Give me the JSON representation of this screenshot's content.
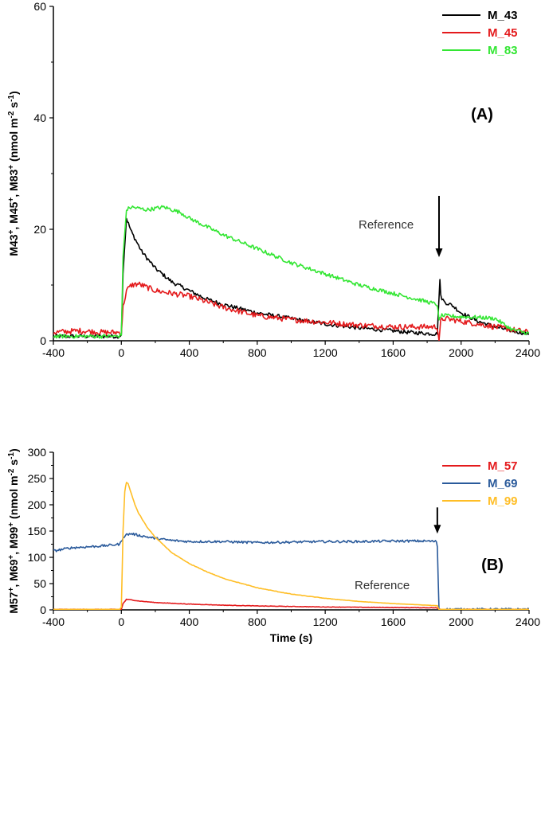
{
  "chart_data": [
    {
      "type": "line",
      "panel_label": "(A)",
      "ylabel_parts": [
        {
          "t": "M43"
        },
        {
          "t": "+",
          "sup": true
        },
        {
          "t": ", M45"
        },
        {
          "t": "+",
          "sup": true
        },
        {
          "t": ", M83"
        },
        {
          "t": "+",
          "sup": true
        },
        {
          "t": " (nmol m"
        },
        {
          "t": "-2",
          "sup": true
        },
        {
          "t": " s"
        },
        {
          "t": "-1",
          "sup": true
        },
        {
          "t": ")"
        }
      ],
      "xlabel": "",
      "xlim": [
        -400,
        2400
      ],
      "ylim": [
        0,
        60
      ],
      "xticks": [
        "-400",
        "0",
        "400",
        "800",
        "1200",
        "1600",
        "2000",
        "2400"
      ],
      "yticks": [
        "0",
        "20",
        "40",
        "60"
      ],
      "legend_position": "top-right",
      "annotation": {
        "text": "Reference",
        "x": 1870,
        "arrow_from": 26,
        "arrow_to": 15
      },
      "series": [
        {
          "name": "M_43",
          "color": "#000000",
          "x": [
            -400,
            -200,
            -20,
            0,
            10,
            30,
            60,
            120,
            200,
            300,
            400,
            500,
            600,
            800,
            1000,
            1200,
            1400,
            1600,
            1700,
            1860,
            1870,
            1875,
            1880,
            1900,
            1950,
            2000,
            2100,
            2200,
            2300,
            2400
          ],
          "y": [
            0.8,
            0.8,
            0.8,
            1.0,
            12,
            22,
            19.5,
            16,
            13,
            10.5,
            9,
            7.5,
            6.5,
            5,
            4,
            3,
            2.3,
            1.8,
            1.5,
            1.2,
            8,
            11,
            8,
            7,
            6.3,
            5,
            3.5,
            2.5,
            1.8,
            1.2
          ]
        },
        {
          "name": "M_45",
          "color": "#e41a1c",
          "x": [
            -400,
            -250,
            -100,
            -20,
            0,
            10,
            30,
            60,
            100,
            200,
            300,
            400,
            500,
            600,
            800,
            1000,
            1200,
            1400,
            1600,
            1700,
            1860,
            1870,
            1875,
            1880,
            1900,
            2000,
            2100,
            2200,
            2300,
            2400
          ],
          "y": [
            1.5,
            1.8,
            1.5,
            1.5,
            1.5,
            6,
            9,
            10,
            10.2,
            9,
            8.5,
            8,
            7,
            6,
            4.5,
            3.8,
            3.3,
            2.8,
            2.5,
            2.5,
            2.5,
            0,
            1.5,
            3.5,
            4,
            3.5,
            3,
            2.5,
            2,
            1.5
          ]
        },
        {
          "name": "M_83",
          "color": "#33e633",
          "x": [
            -400,
            -200,
            -20,
            0,
            10,
            30,
            60,
            150,
            250,
            350,
            400,
            500,
            600,
            800,
            1000,
            1200,
            1400,
            1600,
            1800,
            1860,
            1870,
            1880,
            1900,
            2000,
            2100,
            2200,
            2300,
            2400
          ],
          "y": [
            0.8,
            0.8,
            0.8,
            1.0,
            15,
            23.5,
            24,
            23.5,
            24,
            23,
            22,
            20.5,
            19,
            16.5,
            14,
            12,
            10,
            8.5,
            7,
            6.5,
            3.5,
            4.5,
            4.5,
            4.3,
            4.2,
            4,
            2,
            1.3
          ]
        }
      ]
    },
    {
      "type": "line",
      "panel_label": "(B)",
      "ylabel_parts": [
        {
          "t": "M57"
        },
        {
          "t": "+",
          "sup": true
        },
        {
          "t": ", M69"
        },
        {
          "t": "+",
          "sup": true
        },
        {
          "t": ", M99"
        },
        {
          "t": "+",
          "sup": true
        },
        {
          "t": " (nmol m"
        },
        {
          "t": "-2",
          "sup": true
        },
        {
          "t": " s"
        },
        {
          "t": "-1",
          "sup": true
        },
        {
          "t": ")"
        }
      ],
      "xlabel": "Time (s)",
      "xlim": [
        -400,
        2400
      ],
      "ylim": [
        0,
        300
      ],
      "xticks": [
        "-400",
        "0",
        "400",
        "800",
        "1200",
        "1600",
        "2000",
        "2400"
      ],
      "yticks": [
        "0",
        "50",
        "100",
        "150",
        "200",
        "250",
        "300"
      ],
      "legend_position": "top-right",
      "annotation": {
        "text": "Reference",
        "x": 1860,
        "arrow_from": 195,
        "arrow_to": 145
      },
      "series": [
        {
          "name": "M_57",
          "color": "#e41a1c",
          "x": [
            -400,
            -200,
            -10,
            0,
            10,
            30,
            60,
            100,
            200,
            400,
            600,
            800,
            1000,
            1200,
            1400,
            1600,
            1850,
            1860,
            1880,
            2000,
            2400
          ],
          "y": [
            1,
            1,
            1,
            1,
            12,
            20,
            19,
            17,
            14,
            11,
            9,
            7.5,
            6.5,
            5.5,
            5,
            4.5,
            4,
            3,
            1,
            1,
            1
          ]
        },
        {
          "name": "M_69",
          "color": "#2a5a9b",
          "x": [
            -400,
            -300,
            -200,
            -100,
            -10,
            0,
            10,
            30,
            60,
            100,
            200,
            300,
            400,
            600,
            800,
            1000,
            1200,
            1400,
            1600,
            1800,
            1855,
            1860,
            1870,
            1900,
            2000,
            2400
          ],
          "y": [
            112,
            118,
            120,
            122,
            125,
            130,
            138,
            143,
            145,
            142,
            136,
            132,
            130,
            130,
            128,
            129,
            130,
            130,
            131,
            131,
            130,
            120,
            1,
            1,
            1,
            1
          ]
        },
        {
          "name": "M_99",
          "color": "#ffbe26",
          "x": [
            -400,
            -200,
            -10,
            0,
            10,
            20,
            30,
            40,
            60,
            80,
            100,
            150,
            200,
            300,
            400,
            500,
            600,
            800,
            1000,
            1200,
            1400,
            1600,
            1800,
            1860,
            1870,
            1900,
            2000,
            2400
          ],
          "y": [
            1,
            1,
            1,
            5,
            150,
            225,
            243,
            240,
            220,
            200,
            185,
            158,
            138,
            108,
            88,
            73,
            60,
            42,
            30,
            22,
            16,
            12,
            9,
            8,
            1,
            1,
            1,
            1
          ]
        }
      ]
    }
  ]
}
